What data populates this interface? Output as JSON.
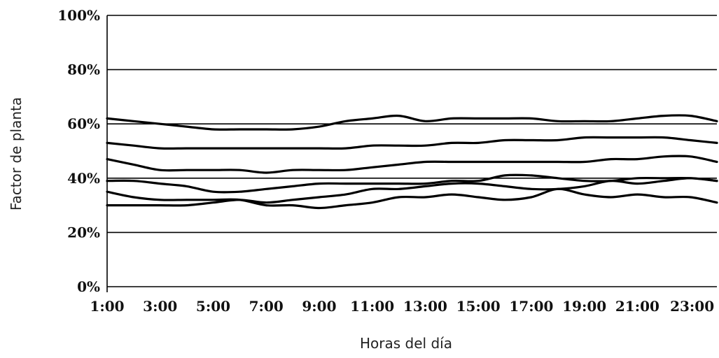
{
  "chart_data": {
    "type": "line",
    "xlabel": "Horas del día",
    "ylabel": "Factor de planta",
    "x_ticks": [
      "1:00",
      "3:00",
      "5:00",
      "7:00",
      "9:00",
      "11:00",
      "13:00",
      "15:00",
      "17:00",
      "19:00",
      "21:00",
      "23:00"
    ],
    "y_ticks": [
      "0%",
      "20%",
      "40%",
      "60%",
      "80%",
      "100%"
    ],
    "xlim": [
      1,
      24
    ],
    "ylim": [
      0,
      100
    ],
    "grid": true,
    "x": [
      1,
      2,
      3,
      4,
      5,
      6,
      7,
      8,
      9,
      10,
      11,
      12,
      13,
      14,
      15,
      16,
      17,
      18,
      19,
      20,
      21,
      22,
      23,
      24
    ],
    "series": [
      {
        "values": [
          62,
          61,
          60,
          59,
          58,
          58,
          58,
          58,
          59,
          61,
          62,
          63,
          61,
          62,
          62,
          62,
          62,
          61,
          61,
          61,
          62,
          63,
          63,
          61
        ]
      },
      {
        "values": [
          53,
          52,
          51,
          51,
          51,
          51,
          51,
          51,
          51,
          51,
          52,
          52,
          52,
          53,
          53,
          54,
          54,
          54,
          55,
          55,
          55,
          55,
          54,
          53
        ]
      },
      {
        "values": [
          47,
          45,
          43,
          43,
          43,
          43,
          42,
          43,
          43,
          43,
          44,
          45,
          46,
          46,
          46,
          46,
          46,
          46,
          46,
          47,
          47,
          48,
          48,
          46
        ]
      },
      {
        "values": [
          39,
          39,
          38,
          37,
          35,
          35,
          36,
          37,
          38,
          38,
          38,
          38,
          38,
          39,
          39,
          41,
          41,
          40,
          39,
          39,
          40,
          40,
          40,
          39
        ]
      },
      {
        "values": [
          35,
          33,
          32,
          32,
          32,
          32,
          30,
          30,
          29,
          30,
          31,
          33,
          33,
          34,
          33,
          32,
          33,
          36,
          34,
          33,
          34,
          33,
          33,
          31
        ]
      },
      {
        "values": [
          30,
          30,
          30,
          30,
          31,
          32,
          31,
          32,
          33,
          34,
          36,
          36,
          37,
          38,
          38,
          37,
          36,
          36,
          37,
          39,
          38,
          39,
          40,
          39
        ]
      }
    ]
  }
}
